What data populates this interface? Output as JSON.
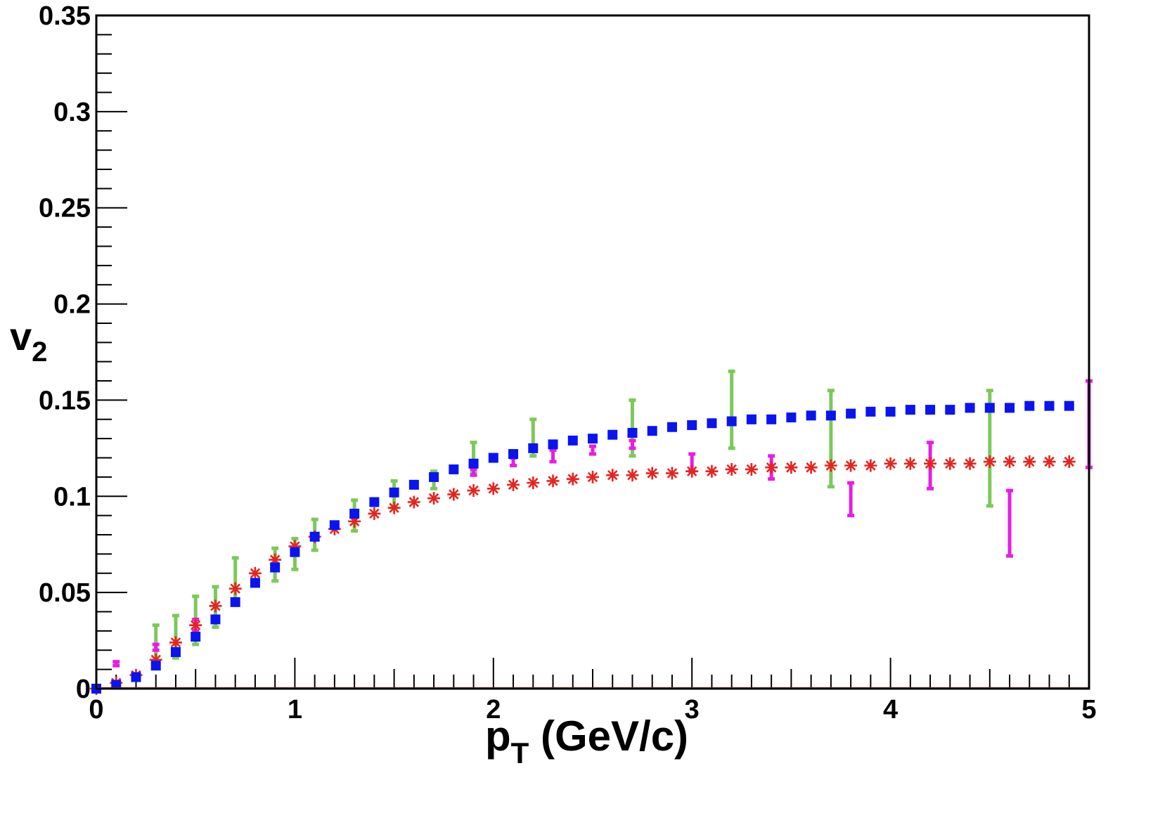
{
  "chart_data": {
    "type": "scatter",
    "title": "",
    "xlabel": "p",
    "xlabel_sub": "T",
    "xlabel_unit": " (GeV/c)",
    "ylabel": "v",
    "ylabel_sub": "2",
    "xlim": [
      0,
      5
    ],
    "ylim": [
      0,
      0.35
    ],
    "x_ticks": [
      "0",
      "1",
      "2",
      "3",
      "4",
      "5"
    ],
    "y_ticks": [
      "0",
      "0.05",
      "0.1",
      "0.15",
      "0.2",
      "0.25",
      "0.3",
      "0.35"
    ],
    "colors": {
      "blue": "#0a14f0",
      "red": "#e8231e",
      "green": "#7cc95a",
      "magenta": "#e41fe4"
    },
    "series": [
      {
        "name": "blue-squares",
        "marker": "square",
        "color": "#0a14f0",
        "x": [
          0.0,
          0.1,
          0.2,
          0.3,
          0.4,
          0.5,
          0.6,
          0.7,
          0.8,
          0.9,
          1.0,
          1.1,
          1.2,
          1.3,
          1.4,
          1.5,
          1.6,
          1.7,
          1.8,
          1.9,
          2.0,
          2.1,
          2.2,
          2.3,
          2.4,
          2.5,
          2.6,
          2.7,
          2.8,
          2.9,
          3.0,
          3.1,
          3.2,
          3.3,
          3.4,
          3.5,
          3.6,
          3.7,
          3.8,
          3.9,
          4.0,
          4.1,
          4.2,
          4.3,
          4.4,
          4.5,
          4.6,
          4.7,
          4.8,
          4.9
        ],
        "y": [
          0.0,
          0.002,
          0.006,
          0.012,
          0.019,
          0.027,
          0.036,
          0.045,
          0.055,
          0.063,
          0.071,
          0.079,
          0.085,
          0.091,
          0.097,
          0.102,
          0.106,
          0.11,
          0.114,
          0.117,
          0.12,
          0.122,
          0.125,
          0.127,
          0.129,
          0.13,
          0.132,
          0.133,
          0.134,
          0.136,
          0.137,
          0.138,
          0.139,
          0.14,
          0.14,
          0.141,
          0.142,
          0.142,
          0.143,
          0.144,
          0.144,
          0.145,
          0.145,
          0.145,
          0.146,
          0.146,
          0.146,
          0.147,
          0.147,
          0.147
        ]
      },
      {
        "name": "red-stars",
        "marker": "star",
        "color": "#e8231e",
        "x": [
          0.0,
          0.1,
          0.2,
          0.3,
          0.4,
          0.5,
          0.6,
          0.7,
          0.8,
          0.9,
          1.0,
          1.1,
          1.2,
          1.3,
          1.4,
          1.5,
          1.6,
          1.7,
          1.8,
          1.9,
          2.0,
          2.1,
          2.2,
          2.3,
          2.4,
          2.5,
          2.6,
          2.7,
          2.8,
          2.9,
          3.0,
          3.1,
          3.2,
          3.3,
          3.4,
          3.5,
          3.6,
          3.7,
          3.8,
          3.9,
          4.0,
          4.1,
          4.2,
          4.3,
          4.4,
          4.5,
          4.6,
          4.7,
          4.8,
          4.9
        ],
        "y": [
          0.0,
          0.003,
          0.007,
          0.015,
          0.024,
          0.033,
          0.043,
          0.052,
          0.06,
          0.067,
          0.074,
          0.079,
          0.083,
          0.087,
          0.091,
          0.094,
          0.097,
          0.099,
          0.101,
          0.103,
          0.104,
          0.106,
          0.107,
          0.108,
          0.109,
          0.11,
          0.111,
          0.111,
          0.112,
          0.112,
          0.113,
          0.113,
          0.114,
          0.114,
          0.115,
          0.115,
          0.115,
          0.116,
          0.116,
          0.116,
          0.117,
          0.117,
          0.117,
          0.117,
          0.117,
          0.118,
          0.118,
          0.118,
          0.118,
          0.118
        ]
      },
      {
        "name": "green-error-bars",
        "marker": "errorbar",
        "color": "#7cc95a",
        "x": [
          0.3,
          0.4,
          0.5,
          0.6,
          0.7,
          0.9,
          1.0,
          1.1,
          1.3,
          1.5,
          1.7,
          1.9,
          2.2,
          2.7,
          3.2,
          3.7,
          4.5
        ],
        "ylow": [
          0.011,
          0.016,
          0.023,
          0.032,
          0.045,
          0.056,
          0.062,
          0.072,
          0.082,
          0.094,
          0.104,
          0.112,
          0.121,
          0.121,
          0.125,
          0.105,
          0.095
        ],
        "yhigh": [
          0.033,
          0.038,
          0.048,
          0.053,
          0.068,
          0.073,
          0.078,
          0.088,
          0.098,
          0.108,
          0.113,
          0.128,
          0.14,
          0.15,
          0.165,
          0.155,
          0.155
        ]
      },
      {
        "name": "magenta-error-bars",
        "marker": "errorbar",
        "color": "#e41fe4",
        "x": [
          0.1,
          0.3,
          0.5,
          1.9,
          2.1,
          2.3,
          2.5,
          2.7,
          3.0,
          3.4,
          3.8,
          4.2,
          4.6,
          5.0
        ],
        "ylow": [
          0.012,
          0.02,
          0.03,
          0.111,
          0.116,
          0.118,
          0.122,
          0.125,
          0.113,
          0.109,
          0.09,
          0.104,
          0.069,
          0.115
        ],
        "yhigh": [
          0.014,
          0.023,
          0.036,
          0.114,
          0.12,
          0.124,
          0.126,
          0.129,
          0.122,
          0.121,
          0.107,
          0.128,
          0.103,
          0.16
        ]
      }
    ]
  }
}
